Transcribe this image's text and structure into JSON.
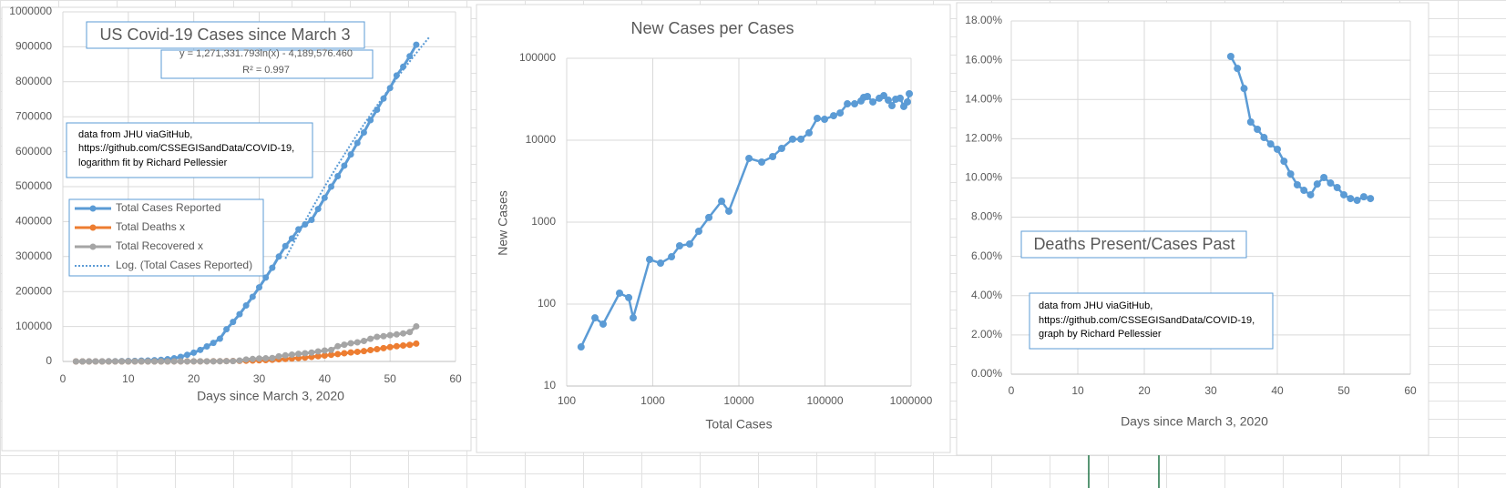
{
  "chart_data": [
    {
      "type": "line",
      "title": "US Covid-19 Cases since March 3",
      "annotations": [
        "y = 1,271,331.793ln(x) - 4,189,576.460",
        "R² = 0.997"
      ],
      "note": [
        "data from JHU viaGitHub,",
        "https://github.com/CSSEGISandData/COVID-19,",
        "logarithm fit by Richard Pellessier"
      ],
      "x_label": "Days since March 3, 2020",
      "xlim": [
        0,
        60
      ],
      "xticks": [
        0,
        10,
        20,
        30,
        40,
        50,
        60
      ],
      "ylim": [
        0,
        1000000
      ],
      "yticks": [
        0,
        100000,
        200000,
        300000,
        400000,
        500000,
        600000,
        700000,
        800000,
        900000,
        1000000
      ],
      "grid": true,
      "legend": "left",
      "series": [
        {
          "name": "Total Cases Reported",
          "color": "#5b9bd5",
          "markers": true,
          "x": [
            2,
            3,
            4,
            5,
            6,
            7,
            8,
            9,
            10,
            11,
            12,
            13,
            14,
            15,
            16,
            17,
            18,
            19,
            20,
            21,
            22,
            23,
            24,
            25,
            26,
            27,
            28,
            29,
            30,
            31,
            32,
            33,
            34,
            35,
            36,
            37,
            38,
            39,
            40,
            41,
            42,
            43,
            44,
            45,
            46,
            47,
            48,
            49,
            50,
            51,
            52,
            53,
            54
          ],
          "values": [
            100,
            150,
            200,
            250,
            400,
            500,
            700,
            1000,
            1300,
            1700,
            2200,
            2700,
            3500,
            4600,
            6400,
            9000,
            13000,
            19000,
            25000,
            33000,
            43000,
            53000,
            65000,
            92000,
            113000,
            135000,
            160000,
            185000,
            212000,
            240000,
            268000,
            300000,
            330000,
            352000,
            378000,
            392000,
            405000,
            436000,
            468000,
            500000,
            530000,
            560000,
            592000,
            625000,
            655000,
            690000,
            720000,
            752000,
            782000,
            818000,
            843000,
            873000,
            906000
          ]
        },
        {
          "name": "Total Deaths x",
          "color": "#ed7d31",
          "markers": true,
          "x": [
            2,
            3,
            4,
            5,
            6,
            7,
            8,
            9,
            10,
            11,
            12,
            13,
            14,
            15,
            16,
            17,
            18,
            19,
            20,
            21,
            22,
            23,
            24,
            25,
            26,
            27,
            28,
            29,
            30,
            31,
            32,
            33,
            34,
            35,
            36,
            37,
            38,
            39,
            40,
            41,
            42,
            43,
            44,
            45,
            46,
            47,
            48,
            49,
            50,
            51,
            52,
            53,
            54
          ],
          "values": [
            6,
            9,
            11,
            12,
            15,
            19,
            22,
            26,
            31,
            38,
            41,
            48,
            57,
            68,
            86,
            108,
            150,
            210,
            260,
            350,
            470,
            590,
            780,
            1000,
            1300,
            1700,
            2100,
            2600,
            3200,
            4000,
            4900,
            6000,
            7100,
            8400,
            9600,
            11000,
            13000,
            15000,
            17000,
            19000,
            21000,
            23500,
            25800,
            27500,
            29500,
            32500,
            35000,
            38000,
            41000,
            43500,
            45500,
            47500,
            51000
          ]
        },
        {
          "name": "Total Recovered x",
          "color": "#a5a5a5",
          "markers": true,
          "x": [
            2,
            3,
            4,
            5,
            6,
            7,
            8,
            9,
            10,
            11,
            12,
            13,
            14,
            15,
            16,
            17,
            18,
            19,
            20,
            21,
            22,
            23,
            24,
            25,
            26,
            27,
            28,
            29,
            30,
            31,
            32,
            33,
            34,
            35,
            36,
            37,
            38,
            39,
            40,
            41,
            42,
            43,
            44,
            45,
            46,
            47,
            48,
            49,
            50,
            51,
            52,
            53,
            54
          ],
          "values": [
            7,
            7,
            8,
            8,
            8,
            8,
            8,
            8,
            8,
            8,
            12,
            12,
            12,
            17,
            17,
            106,
            108,
            147,
            171,
            178,
            348,
            361,
            681,
            869,
            1072,
            2665,
            5644,
            7024,
            8474,
            9001,
            9707,
            14652,
            17448,
            19581,
            21763,
            23559,
            25410,
            28790,
            31270,
            32988,
            43482,
            47763,
            52096,
            54703,
            58545,
            64840,
            70337,
            72329,
            75204,
            77366,
            80203,
            84050,
            100372
          ]
        },
        {
          "name": "Log. (Total Cases Reported)",
          "color": "#5b9bd5",
          "style": "dotted",
          "x": [
            34,
            36,
            38,
            40,
            42,
            44,
            46,
            48,
            50,
            52,
            54,
            56
          ],
          "values": [
            294000,
            366000,
            435000,
            500000,
            562000,
            621000,
            678000,
            732000,
            784000,
            834000,
            882000,
            928000
          ]
        }
      ]
    },
    {
      "type": "line",
      "title": "New Cases per Cases",
      "x_label": "Total Cases",
      "y_label": "New Cases",
      "xscale": "log",
      "yscale": "log",
      "xlim": [
        100,
        1000000
      ],
      "xticks": [
        100,
        1000,
        10000,
        100000,
        1000000
      ],
      "ylim": [
        10,
        100000
      ],
      "yticks": [
        10,
        100,
        1000,
        10000,
        100000
      ],
      "grid": true,
      "series": [
        {
          "color": "#5b9bd5",
          "markers": true,
          "x": [
            147,
            213,
            265,
            411,
            525,
            592,
            918,
            1230,
            1650,
            2050,
            2680,
            3420,
            4480,
            6300,
            7650,
            13100,
            18400,
            24700,
            31400,
            42100,
            52500,
            65300,
            81300,
            98900,
            126000,
            150000,
            182000,
            221000,
            262000,
            282000,
            311000,
            360000,
            427000,
            482000,
            544000,
            600000,
            661000,
            747000,
            823000,
            907000,
            953000
          ],
          "values": [
            30,
            68,
            57,
            136,
            120,
            68,
            350,
            316,
            378,
            514,
            541,
            774,
            1140,
            1800,
            1360,
            6000,
            5410,
            6310,
            7940,
            10300,
            10300,
            12300,
            18500,
            18000,
            19900,
            21500,
            27800,
            27800,
            30100,
            33300,
            34200,
            29300,
            32500,
            35000,
            30800,
            26400,
            31600,
            32500,
            25800,
            29300,
            36900
          ]
        }
      ]
    },
    {
      "type": "line",
      "title": "Deaths Present/Cases Past",
      "x_label": "Days since March 3, 2020",
      "note": [
        "data from JHU viaGitHub,",
        "https://github.com/CSSEGISandData/COVID-19,",
        "graph by Richard Pellessier"
      ],
      "xlim": [
        0,
        60
      ],
      "xticks": [
        0,
        10,
        20,
        30,
        40,
        50,
        60
      ],
      "ylim": [
        0,
        18
      ],
      "yticks": [
        {
          "value": 0,
          "label": "0.00%"
        },
        {
          "value": 2,
          "label": "2.00%"
        },
        {
          "value": 4,
          "label": "4.00%"
        },
        {
          "value": 6,
          "label": "6.00%"
        },
        {
          "value": 8,
          "label": "8.00%"
        },
        {
          "value": 10,
          "label": "10.00%"
        },
        {
          "value": 12,
          "label": "12.00%"
        },
        {
          "value": 14,
          "label": "14.00%"
        },
        {
          "value": 16,
          "label": "16.00%"
        },
        {
          "value": 18,
          "label": "18.00%"
        }
      ],
      "grid": true,
      "series": [
        {
          "color": "#5b9bd5",
          "markers": true,
          "x": [
            33,
            34,
            35,
            36,
            37,
            38,
            39,
            40,
            41,
            42,
            43,
            44,
            45,
            46,
            47,
            48,
            49,
            50,
            51,
            52,
            53,
            54
          ],
          "values": [
            16.19,
            15.58,
            14.56,
            12.85,
            12.48,
            12.06,
            11.73,
            11.46,
            10.85,
            10.2,
            9.65,
            9.37,
            9.14,
            9.69,
            10.02,
            9.74,
            9.51,
            9.14,
            8.95,
            8.86,
            9.04,
            8.95
          ]
        }
      ]
    }
  ]
}
